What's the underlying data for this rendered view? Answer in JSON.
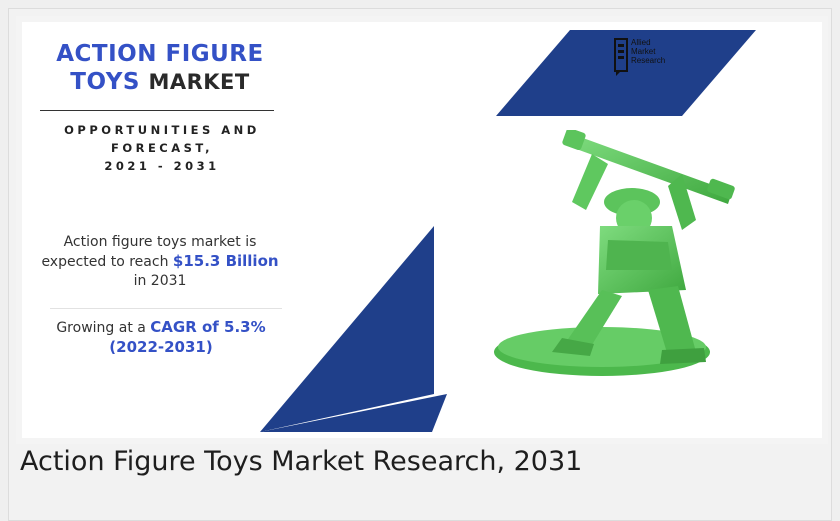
{
  "infographic": {
    "title_line1": "ACTION FIGURE",
    "title_line2_blue": "TOYS",
    "title_line2_dark": "MARKET",
    "subtitle_line1": "OPPORTUNITIES AND",
    "subtitle_line2": "FORECAST,",
    "subtitle_line3": "2021 - 2031",
    "stat1_prefix": "Action figure toys market is expected to reach",
    "stat1_value": "$15.3 Billion",
    "stat1_suffix": "in 2031",
    "stat2_prefix": "Growing at a",
    "stat2_value": "CAGR of 5.3%",
    "stat2_period": "(2022-2031)",
    "logo_line1": "Allied",
    "logo_line2": "Market",
    "logo_line3": "Research",
    "colors": {
      "accent_blue": "#3451c6",
      "shape_navy": "#1f3f8a",
      "figure_green": "#5cc45c"
    }
  },
  "caption": "Action Figure Toys Market Research, 2031"
}
